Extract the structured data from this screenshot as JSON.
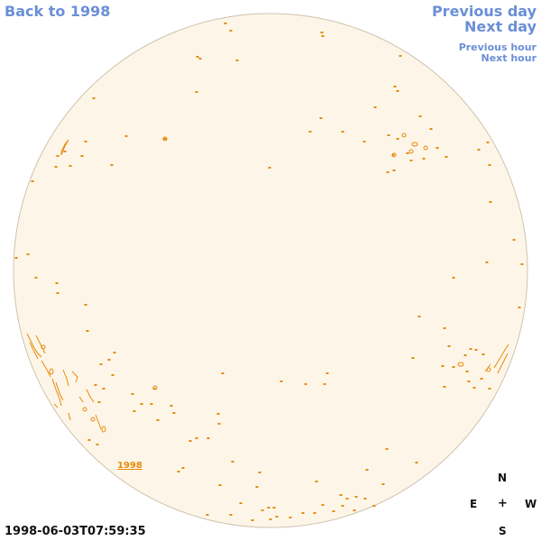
{
  "navigation": {
    "back_label": "Back to 1998",
    "previous_day_label": "Previous day",
    "next_day_label": "Next day",
    "previous_hour_label": "Previous hour",
    "next_hour_label": "Next hour"
  },
  "disk": {
    "year_label": "1998",
    "timestamp": "1998-06-03T07:59:35",
    "colors": {
      "disk_fill": "#fdf6e8",
      "disk_stroke": "#cfc2ad",
      "feature": "#e8890b"
    }
  },
  "compass": {
    "north": "N",
    "east": "E",
    "west": "W",
    "south": "S",
    "center": "+"
  }
}
